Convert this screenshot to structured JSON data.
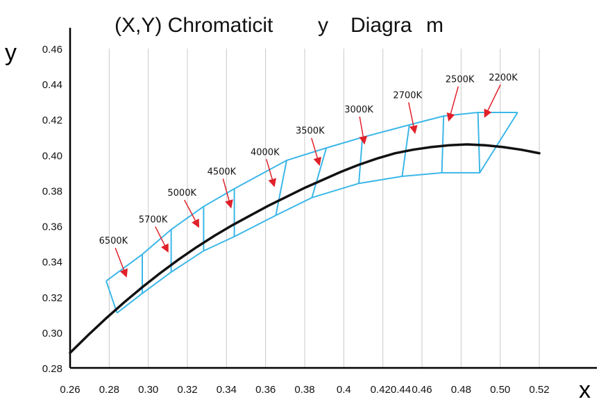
{
  "chart_data": {
    "type": "line",
    "title_parts": [
      "(X,Y) Chromaticit",
      "y",
      "Diagra",
      "m"
    ],
    "xlabel": "x",
    "ylabel": "y",
    "xlim": [
      0.26,
      0.52
    ],
    "ylim": [
      0.28,
      0.46
    ],
    "x_tick_labels": [
      "0.26",
      "0.28",
      "0.30",
      "0.32",
      "0.34",
      "0.36",
      "0.38",
      "0.4",
      "0.420.44",
      "0.46",
      "0.48",
      "0.50",
      "0.52"
    ],
    "y_ticks": [
      "0.28",
      "0.30",
      "0.32",
      "0.34",
      "0.36",
      "0.38",
      "0.40",
      "0.42",
      "0.44",
      "0.46"
    ],
    "grid": true,
    "colors": {
      "locus": "#111111",
      "bins": "#3cb7e8",
      "arrows": "#e0202a",
      "grid": "#c8c8c8"
    },
    "series": [
      {
        "points": [
          [
            0.26,
            0.2885
          ],
          [
            0.27,
            0.2985
          ],
          [
            0.28,
            0.308
          ],
          [
            0.29,
            0.317
          ],
          [
            0.3,
            0.3255
          ],
          [
            0.31,
            0.3335
          ],
          [
            0.32,
            0.341
          ],
          [
            0.33,
            0.348
          ],
          [
            0.34,
            0.3545
          ],
          [
            0.35,
            0.3605
          ],
          [
            0.36,
            0.366
          ],
          [
            0.37,
            0.3715
          ],
          [
            0.38,
            0.3765
          ],
          [
            0.39,
            0.3815
          ],
          [
            0.4,
            0.386
          ],
          [
            0.41,
            0.3905
          ],
          [
            0.42,
            0.3945
          ],
          [
            0.43,
            0.398
          ],
          [
            0.44,
            0.401
          ],
          [
            0.45,
            0.403
          ],
          [
            0.46,
            0.4045
          ],
          [
            0.47,
            0.4055
          ],
          [
            0.48,
            0.406
          ],
          [
            0.49,
            0.4055
          ],
          [
            0.5,
            0.4045
          ],
          [
            0.51,
            0.403
          ],
          [
            0.52,
            0.401
          ]
        ]
      }
    ],
    "bin_upper": [
      [
        0.28,
        0.329
      ],
      [
        0.3,
        0.344
      ],
      [
        0.316,
        0.358
      ],
      [
        0.334,
        0.371
      ],
      [
        0.351,
        0.381
      ],
      [
        0.38,
        0.397
      ],
      [
        0.402,
        0.404
      ],
      [
        0.422,
        0.41
      ],
      [
        0.448,
        0.417
      ],
      [
        0.467,
        0.422
      ],
      [
        0.486,
        0.424
      ],
      [
        0.508,
        0.424
      ]
    ],
    "bin_lower": [
      [
        0.286,
        0.311
      ],
      [
        0.3,
        0.322
      ],
      [
        0.316,
        0.334
      ],
      [
        0.334,
        0.346
      ],
      [
        0.351,
        0.354
      ],
      [
        0.374,
        0.366
      ],
      [
        0.394,
        0.376
      ],
      [
        0.42,
        0.384
      ],
      [
        0.444,
        0.388
      ],
      [
        0.466,
        0.39
      ],
      [
        0.487,
        0.39
      ],
      [
        0.508,
        0.424
      ]
    ],
    "bins": [
      {
        "label": "6500K",
        "label_at": [
          0.284,
          0.35
        ],
        "tip": [
          0.291,
          0.332
        ]
      },
      {
        "label": "5700K",
        "label_at": [
          0.306,
          0.362
        ],
        "tip": [
          0.314,
          0.346
        ]
      },
      {
        "label": "5000K",
        "label_at": [
          0.322,
          0.377
        ],
        "tip": [
          0.331,
          0.36
        ]
      },
      {
        "label": "4500K",
        "label_at": [
          0.344,
          0.389
        ],
        "tip": [
          0.349,
          0.371
        ]
      },
      {
        "label": "4000K",
        "label_at": [
          0.368,
          0.4
        ],
        "tip": [
          0.373,
          0.383
        ]
      },
      {
        "label": "3500K",
        "label_at": [
          0.393,
          0.412
        ],
        "tip": [
          0.398,
          0.395
        ]
      },
      {
        "label": "3000K",
        "label_at": [
          0.42,
          0.424
        ],
        "tip": [
          0.423,
          0.407
        ]
      },
      {
        "label": "2700K",
        "label_at": [
          0.447,
          0.432
        ],
        "tip": [
          0.451,
          0.413
        ]
      },
      {
        "label": "2500K",
        "label_at": [
          0.476,
          0.441
        ],
        "tip": [
          0.47,
          0.42
        ]
      },
      {
        "label": "2200K",
        "label_at": [
          0.5,
          0.442
        ],
        "tip": [
          0.49,
          0.422
        ]
      }
    ]
  }
}
